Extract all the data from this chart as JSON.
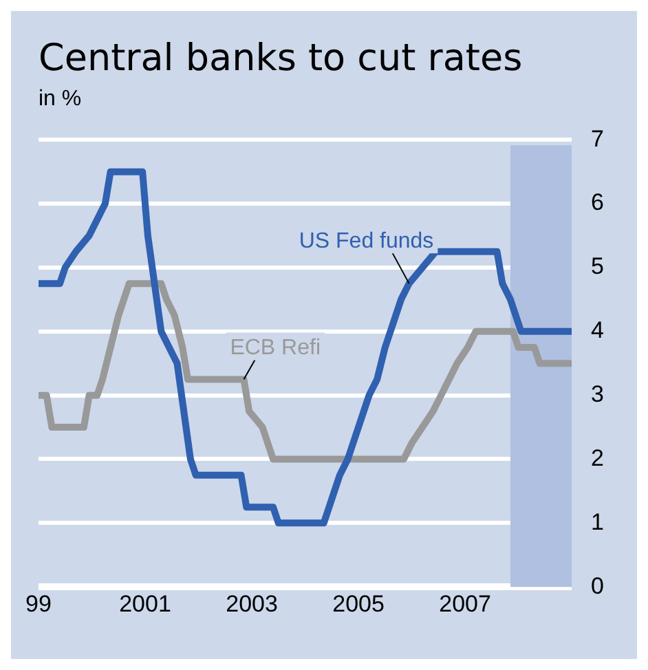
{
  "chart_data": {
    "type": "line",
    "title": "Central banks to cut rates",
    "subtitle": "in %",
    "xlim": [
      1999,
      2009
    ],
    "xticks": [
      {
        "value": 1999,
        "label": "99"
      },
      2001,
      2003,
      2005,
      2007
    ],
    "ylim": [
      0,
      7
    ],
    "yticks": [
      0,
      1,
      2,
      3,
      4,
      5,
      6,
      7
    ],
    "grid": "y",
    "legend": false,
    "bands": [
      {
        "axis": "x",
        "from": 2007.85,
        "to": 2009,
        "color": "#b0c0e0"
      }
    ],
    "series": [
      {
        "name": "US Fed funds",
        "color": "#3060b0",
        "x": [
          1999,
          1999.4,
          1999.5,
          1999.7,
          1999.95,
          2000.1,
          2000.25,
          2000.35,
          2000.95,
          2001.0,
          2001.05,
          2001.3,
          2001.45,
          2001.6,
          2001.85,
          2001.95,
          2002.8,
          2002.9,
          2003.4,
          2003.5,
          2004.35,
          2004.45,
          2004.55,
          2004.65,
          2004.8,
          2004.9,
          2005.1,
          2005.2,
          2005.35,
          2005.5,
          2005.7,
          2005.8,
          2005.95,
          2006.45,
          2007.6,
          2007.7,
          2007.85,
          2007.95,
          2008.05,
          2009
        ],
        "values": [
          4.75,
          4.75,
          5,
          5.25,
          5.5,
          5.75,
          6,
          6.5,
          6.5,
          6,
          5.5,
          4,
          3.75,
          3.5,
          2,
          1.75,
          1.75,
          1.25,
          1.25,
          1,
          1,
          1.25,
          1.5,
          1.75,
          2,
          2.25,
          2.75,
          3,
          3.25,
          3.75,
          4.25,
          4.5,
          4.75,
          5.25,
          5.25,
          4.75,
          4.5,
          4.25,
          4,
          4
        ]
      },
      {
        "name": "ECB Refi",
        "color": "#999999",
        "x": [
          1999,
          1999.15,
          1999.25,
          1999.85,
          1999.95,
          2000.1,
          2000.2,
          2000.35,
          2000.5,
          2000.7,
          2001.3,
          2001.4,
          2001.55,
          2001.7,
          2001.8,
          2002.85,
          2002.95,
          2003.2,
          2003.4,
          2005.85,
          2006.0,
          2006.2,
          2006.4,
          2006.55,
          2006.7,
          2006.85,
          2007.05,
          2007.2,
          2007.9,
          2008.0,
          2008.3,
          2008.4,
          2009
        ],
        "values": [
          3,
          3,
          2.5,
          2.5,
          3,
          3,
          3.25,
          3.75,
          4.25,
          4.75,
          4.75,
          4.5,
          4.25,
          3.75,
          3.25,
          3.25,
          2.75,
          2.5,
          2,
          2,
          2.25,
          2.5,
          2.75,
          3,
          3.25,
          3.5,
          3.75,
          4,
          4,
          3.75,
          3.75,
          3.5,
          3.5
        ]
      }
    ]
  }
}
